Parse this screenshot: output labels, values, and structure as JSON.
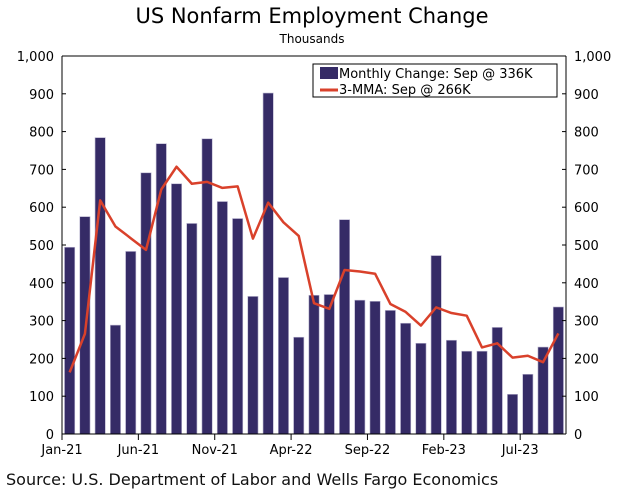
{
  "chart_data": {
    "type": "bar",
    "title": "US Nonfarm Employment Change",
    "subtitle": "Thousands",
    "source": "Source: U.S. Department of Labor and Wells Fargo Economics",
    "categories": [
      "Jan-21",
      "Feb-21",
      "Mar-21",
      "Apr-21",
      "May-21",
      "Jun-21",
      "Jul-21",
      "Aug-21",
      "Sep-21",
      "Oct-21",
      "Nov-21",
      "Dec-21",
      "Jan-22",
      "Feb-22",
      "Mar-22",
      "Apr-22",
      "May-22",
      "Jun-22",
      "Jul-22",
      "Aug-22",
      "Sep-22",
      "Oct-22",
      "Nov-22",
      "Dec-22",
      "Jan-23",
      "Feb-23",
      "Mar-23",
      "Apr-23",
      "May-23",
      "Jun-23",
      "Jul-23",
      "Aug-23",
      "Sep-23"
    ],
    "x_tick_labels": [
      "Jan-21",
      "Jun-21",
      "Nov-21",
      "Apr-22",
      "Sep-22",
      "Feb-23",
      "Jul-23"
    ],
    "series": [
      {
        "name": "Monthly Change: Sep @ 336K",
        "type": "bar",
        "color": "#352b66",
        "values": [
          494,
          575,
          784,
          288,
          483,
          691,
          768,
          662,
          557,
          781,
          615,
          570,
          364,
          902,
          414,
          256,
          367,
          369,
          567,
          354,
          351,
          327,
          293,
          240,
          472,
          248,
          219,
          219,
          282,
          105,
          158,
          230,
          336
        ]
      },
      {
        "name": "3-MMA: Sep @ 266K",
        "type": "line",
        "color": "#d9412b",
        "values": [
          163,
          265,
          618,
          549,
          518,
          487,
          647,
          707,
          662,
          667,
          651,
          655,
          517,
          612,
          560,
          524,
          346,
          331,
          434,
          430,
          424,
          344,
          323,
          287,
          335,
          320,
          313,
          229,
          240,
          202,
          207,
          190,
          266
        ]
      }
    ],
    "ylim": [
      0,
      1000
    ],
    "y_ticks": [
      "0",
      "100",
      "200",
      "300",
      "400",
      "500",
      "600",
      "700",
      "800",
      "900",
      "1,000"
    ],
    "legend": "top-right",
    "grid": false
  }
}
